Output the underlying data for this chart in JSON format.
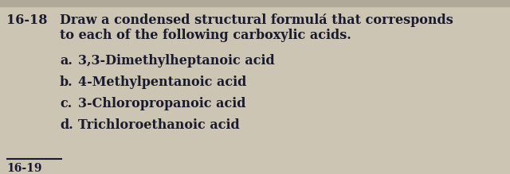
{
  "background_color": "#cdc5b4",
  "top_bar_color": "#b0a898",
  "title_number": "16-18",
  "title_text": "Draw a condensed structural formulá that corresponds",
  "title_text2": "to each of the following carboxylic acids.",
  "items": [
    {
      "label": "a.",
      "text": "3,3-Dimethylheptanoic acid"
    },
    {
      "label": "b.",
      "text": "4-Methylpentanoic acid"
    },
    {
      "label": "c.",
      "text": "3-Chloropropanoic acid"
    },
    {
      "label": "d.",
      "text": "Trichloroethanoic acid"
    }
  ],
  "footer_number": "16-19",
  "fontsize": 11.5,
  "footer_fontsize": 10,
  "text_color": "#1a1a2e",
  "line_color": "#1a1a2e"
}
